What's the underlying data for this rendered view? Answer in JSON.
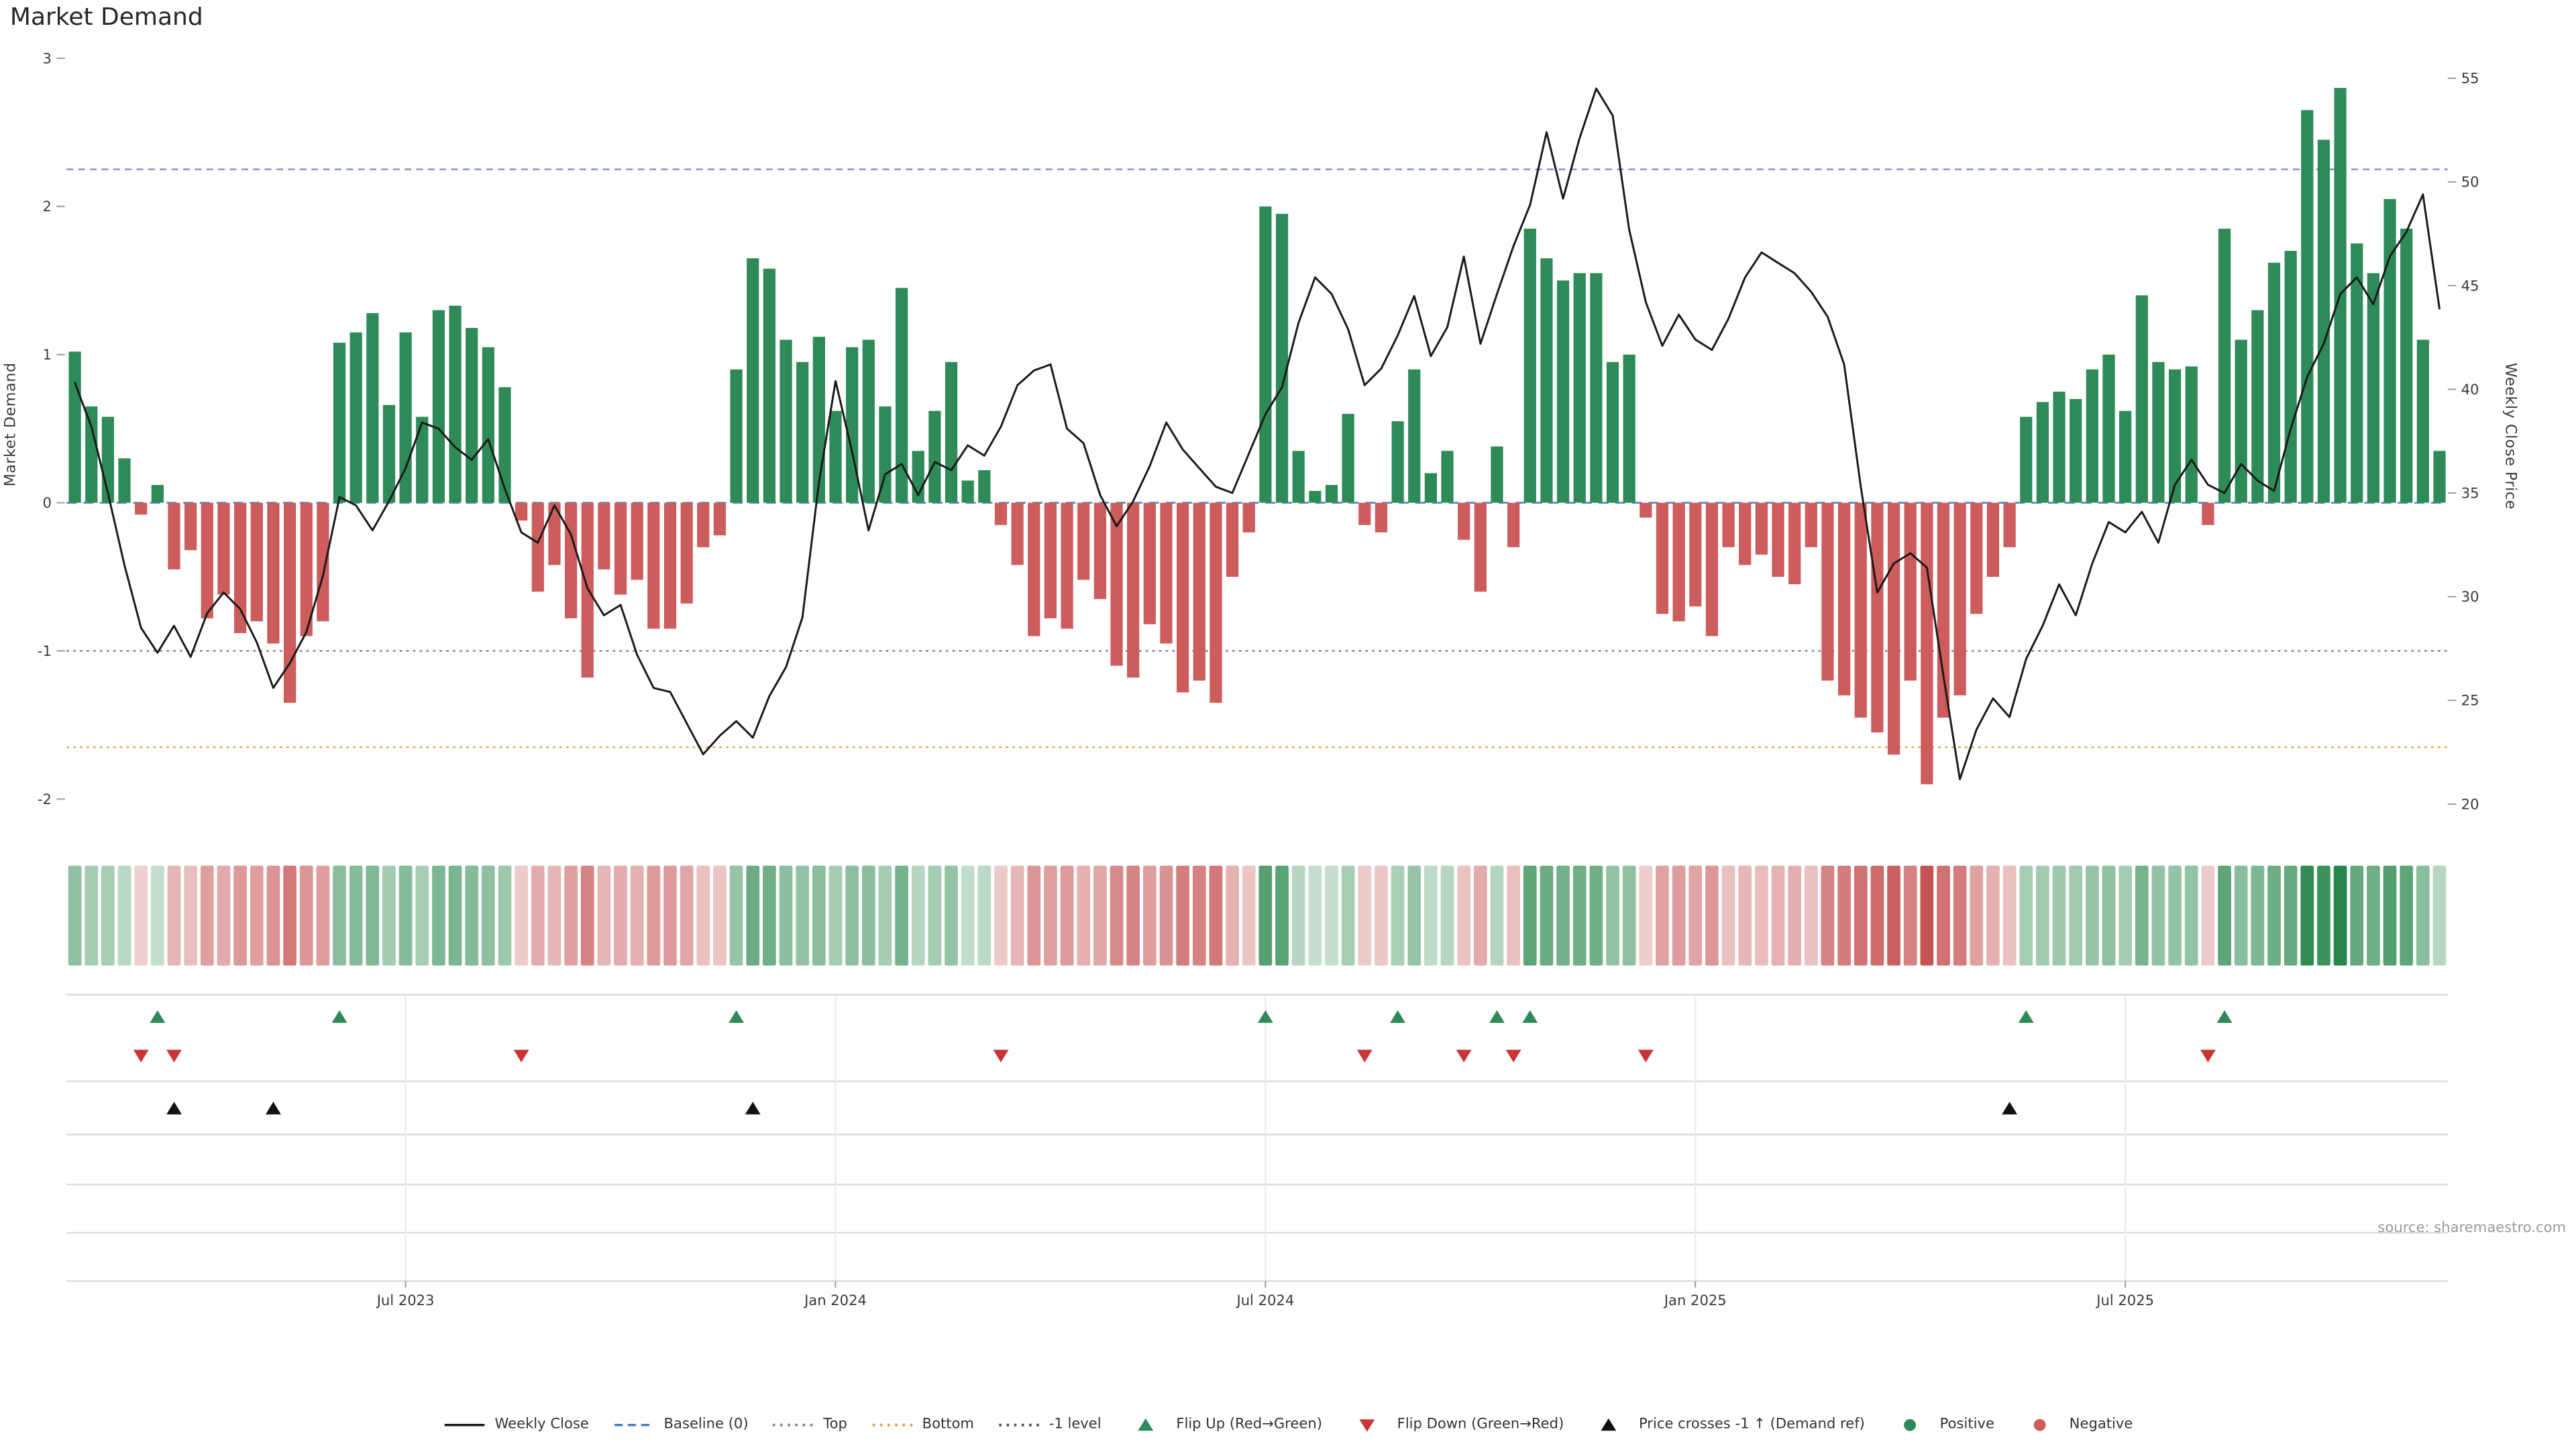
{
  "title": "Market Demand",
  "source": "source: sharemaestro.com",
  "colors": {
    "positive": "#2e8b57",
    "negative": "#cd5c5c",
    "price": "#1a1a1a",
    "baseline": "#4d7fbe",
    "top": "#8088cc",
    "minus1": "#84819e",
    "bottom": "#e3a24b",
    "flip_up": "#2e8b57",
    "flip_down": "#c93535",
    "price_cross": "#111111",
    "heat_positive": "40,135,75",
    "heat_negative": "198,83,83"
  },
  "chart_data": {
    "type": "bar+line",
    "title": "Market Demand",
    "x_unit": "week",
    "ylabel_left": "Market Demand",
    "ylabel_right": "Weekly Close Price",
    "ylim_left": [
      -2.2,
      3
    ],
    "ylim_right": [
      20,
      55
    ],
    "left_ticks": [
      3,
      2,
      1,
      0,
      -1,
      -2
    ],
    "right_ticks": [
      55,
      50,
      45,
      40,
      35,
      30,
      25,
      20
    ],
    "x_ticks": [
      {
        "label": "Jul 2023",
        "index": 20
      },
      {
        "label": "Jan 2024",
        "index": 46
      },
      {
        "label": "Jul 2024",
        "index": 72
      },
      {
        "label": "Jan 2025",
        "index": 98
      },
      {
        "label": "Jul 2025",
        "index": 124
      }
    ],
    "levels": {
      "baseline": 0,
      "top": 2.25,
      "minus1": -1,
      "bottom": -1.65
    },
    "series": [
      {
        "name": "Market Demand",
        "type": "bar",
        "axis": "left",
        "values": [
          1.02,
          0.65,
          0.58,
          0.3,
          -0.08,
          0.12,
          -0.45,
          -0.32,
          -0.78,
          -0.62,
          -0.88,
          -0.8,
          -0.95,
          -1.35,
          -0.9,
          -0.8,
          1.08,
          1.15,
          1.28,
          0.66,
          1.15,
          0.58,
          1.3,
          1.33,
          1.18,
          1.05,
          0.78,
          -0.12,
          -0.6,
          -0.42,
          -0.78,
          -1.18,
          -0.45,
          -0.62,
          -0.52,
          -0.85,
          -0.85,
          -0.68,
          -0.3,
          -0.22,
          0.9,
          1.65,
          1.58,
          1.1,
          0.95,
          1.12,
          0.62,
          1.05,
          1.1,
          0.65,
          1.45,
          0.35,
          0.62,
          0.95,
          0.15,
          0.22,
          -0.15,
          -0.42,
          -0.9,
          -0.78,
          -0.85,
          -0.52,
          -0.65,
          -1.1,
          -1.18,
          -0.82,
          -0.95,
          -1.28,
          -1.2,
          -1.35,
          -0.5,
          -0.2,
          2.0,
          1.95,
          0.35,
          0.08,
          0.12,
          0.6,
          -0.15,
          -0.2,
          0.55,
          0.9,
          0.2,
          0.35,
          -0.25,
          -0.6,
          0.38,
          -0.3,
          1.85,
          1.65,
          1.5,
          1.55,
          1.55,
          0.95,
          1.0,
          -0.1,
          -0.75,
          -0.8,
          -0.7,
          -0.9,
          -0.3,
          -0.42,
          -0.35,
          -0.5,
          -0.55,
          -0.3,
          -1.2,
          -1.3,
          -1.45,
          -1.55,
          -1.7,
          -1.2,
          -1.9,
          -1.45,
          -1.3,
          -0.75,
          -0.5,
          -0.3,
          0.58,
          0.68,
          0.75,
          0.7,
          0.9,
          1.0,
          0.62,
          1.4,
          0.95,
          0.9,
          0.92,
          -0.15,
          1.85,
          1.1,
          1.3,
          1.62,
          1.7,
          2.65,
          2.45,
          2.8,
          1.75,
          1.55,
          2.05,
          1.85,
          1.1,
          0.35
        ]
      },
      {
        "name": "Weekly Close",
        "type": "line",
        "axis": "right",
        "values": [
          40.3,
          38.2,
          35.0,
          31.5,
          28.5,
          27.3,
          28.6,
          27.1,
          29.2,
          30.2,
          29.4,
          27.8,
          25.6,
          26.8,
          28.3,
          31.0,
          34.8,
          34.4,
          33.2,
          34.6,
          36.2,
          38.4,
          38.1,
          37.2,
          36.6,
          37.6,
          35.2,
          33.1,
          32.6,
          34.4,
          33.0,
          30.4,
          29.1,
          29.6,
          27.2,
          25.6,
          25.4,
          23.9,
          22.4,
          23.3,
          24.0,
          23.2,
          25.2,
          26.6,
          29.0,
          35.5,
          40.4,
          37.0,
          33.2,
          35.9,
          36.4,
          34.9,
          36.5,
          36.1,
          37.3,
          36.8,
          38.2,
          40.2,
          40.9,
          41.2,
          38.1,
          37.4,
          34.9,
          33.4,
          34.6,
          36.3,
          38.4,
          37.1,
          36.2,
          35.3,
          35.0,
          36.9,
          38.8,
          40.1,
          43.2,
          45.4,
          44.6,
          42.9,
          40.2,
          41.0,
          42.6,
          44.5,
          41.6,
          43.0,
          46.4,
          42.2,
          44.6,
          46.9,
          48.9,
          52.4,
          49.2,
          52.1,
          54.5,
          53.2,
          47.7,
          44.2,
          42.1,
          43.6,
          42.4,
          41.9,
          43.4,
          45.4,
          46.6,
          46.1,
          45.6,
          44.7,
          43.5,
          41.2,
          35.3,
          30.2,
          31.6,
          32.1,
          31.4,
          26.2,
          21.2,
          23.6,
          25.1,
          24.2,
          27.0,
          28.6,
          30.6,
          29.1,
          31.6,
          33.6,
          33.1,
          34.1,
          32.6,
          35.4,
          36.6,
          35.4,
          35.0,
          36.4,
          35.6,
          35.1,
          38.1,
          40.6,
          42.2,
          44.6,
          45.4,
          44.1,
          46.4,
          47.6,
          49.4,
          43.9
        ]
      }
    ],
    "markers": {
      "flip_up": [
        5,
        16,
        40,
        72,
        80,
        86,
        88,
        118,
        130
      ],
      "flip_down": [
        4,
        6,
        27,
        56,
        78,
        84,
        87,
        95,
        129
      ],
      "price_cross": [
        6,
        12,
        41,
        117
      ]
    }
  },
  "legend": [
    {
      "label": "Weekly Close",
      "type": "line",
      "color": "#1a1a1a"
    },
    {
      "label": "Baseline (0)",
      "type": "dash",
      "color": "#4d7fbe"
    },
    {
      "label": "Top",
      "type": "dot",
      "color": "#8a8a8a"
    },
    {
      "label": "Bottom",
      "type": "dot",
      "color": "#e3a24b"
    },
    {
      "label": "-1 level",
      "type": "dot",
      "color": "#5a5a5a"
    },
    {
      "label": "Flip Up (Red→Green)",
      "type": "tri-up",
      "color": "#2e8b57"
    },
    {
      "label": "Flip Down (Green→Red)",
      "type": "tri-down",
      "color": "#c93535"
    },
    {
      "label": "Price crosses -1 ↑ (Demand ref)",
      "type": "tri-up",
      "color": "#111111"
    },
    {
      "label": "Positive",
      "type": "dot-big",
      "color": "#2e8b57"
    },
    {
      "label": "Negative",
      "type": "dot-big",
      "color": "#cd5c5c"
    }
  ]
}
